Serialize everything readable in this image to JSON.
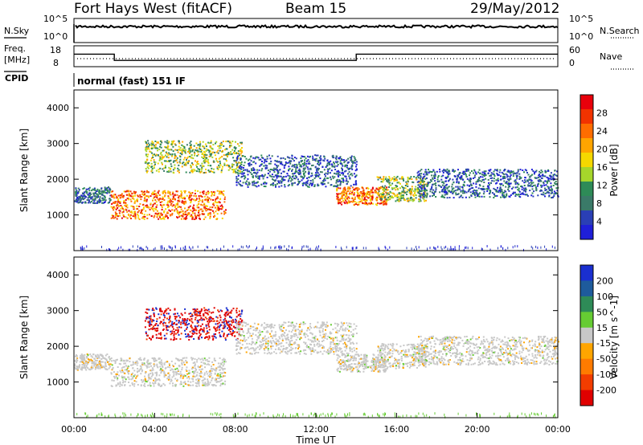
{
  "header": {
    "station": "Fort Hays West (fitACF)",
    "beam": "Beam 15",
    "date": "29/May/2012"
  },
  "left_labels": {
    "nsky": "N.Sky",
    "freq": "Freq.",
    "mhz": "[MHz]",
    "cpid": "CPID"
  },
  "right_labels": {
    "nsearch": "N.Search",
    "nave": "Nave"
  },
  "noise_panel": {
    "tick_top": "10^5",
    "tick_bottom": "10^0",
    "tick_top_r": "10^5",
    "tick_bottom_r": "10^0"
  },
  "freq_panel": {
    "tick_top": "18",
    "tick_bottom": "8",
    "tick_top_r": "60",
    "tick_bottom_r": "0"
  },
  "cpid_text": "normal (fast) 151 IF",
  "power_colorbar": {
    "label": "Power [dB]",
    "ticks": [
      "28",
      "24",
      "20",
      "16",
      "12",
      "8",
      "4"
    ],
    "colors": [
      "#e8000b",
      "#f23300",
      "#ff6d00",
      "#ffa500",
      "#f5d800",
      "#a6d62b",
      "#2e8b57",
      "#3a7a68",
      "#2a3fb5",
      "#1f1fd8"
    ]
  },
  "velocity_colorbar": {
    "label": "Velocity [m s^-1]",
    "ticks": [
      "200",
      "100",
      "50",
      "15",
      "-15",
      "-50",
      "-100",
      "-200"
    ],
    "colors": [
      "#1a2fd0",
      "#1e5b9c",
      "#2e8b57",
      "#66cc33",
      "#c8c8c8",
      "#ffa500",
      "#ff7b00",
      "#f23d00",
      "#e00000"
    ]
  },
  "chart_data": [
    {
      "type": "heatmap",
      "panel": "power",
      "ylabel": "Slant Range [km]",
      "x_range_hours": [
        0,
        24
      ],
      "ylim": [
        0,
        4500
      ],
      "yticks": [
        1000,
        2000,
        3000,
        4000
      ],
      "regions": [
        {
          "t0": 0.0,
          "t1": 1.8,
          "r0": 1350,
          "r1": 1800,
          "level": "low"
        },
        {
          "t0": 1.8,
          "t1": 7.5,
          "r0": 900,
          "r1": 1700,
          "level": "high"
        },
        {
          "t0": 3.5,
          "t1": 8.3,
          "r0": 2200,
          "r1": 3100,
          "level": "mid"
        },
        {
          "t0": 8.0,
          "t1": 14.0,
          "r0": 1800,
          "r1": 2700,
          "level": "low"
        },
        {
          "t0": 13.0,
          "t1": 15.5,
          "r0": 1300,
          "r1": 1800,
          "level": "high"
        },
        {
          "t0": 15.0,
          "t1": 17.5,
          "r0": 1400,
          "r1": 2100,
          "level": "mid"
        },
        {
          "t0": 17.0,
          "t1": 24.0,
          "r0": 1500,
          "r1": 2300,
          "level": "low"
        }
      ]
    },
    {
      "type": "heatmap",
      "panel": "velocity",
      "ylabel": "Slant Range [km]",
      "xlabel": "Time UT",
      "x_range_hours": [
        0,
        24
      ],
      "ylim": [
        0,
        4500
      ],
      "yticks": [
        1000,
        2000,
        3000,
        4000
      ],
      "xticks": [
        "00:00",
        "04:00",
        "08:00",
        "12:00",
        "16:00",
        "20:00",
        "00:00"
      ]
    },
    {
      "type": "line",
      "panel": "frequency",
      "x_hours": [
        0,
        2.0,
        2.0,
        14.0,
        14.0,
        24
      ],
      "y_mhz": [
        14,
        14,
        11,
        11,
        14,
        14
      ]
    }
  ]
}
